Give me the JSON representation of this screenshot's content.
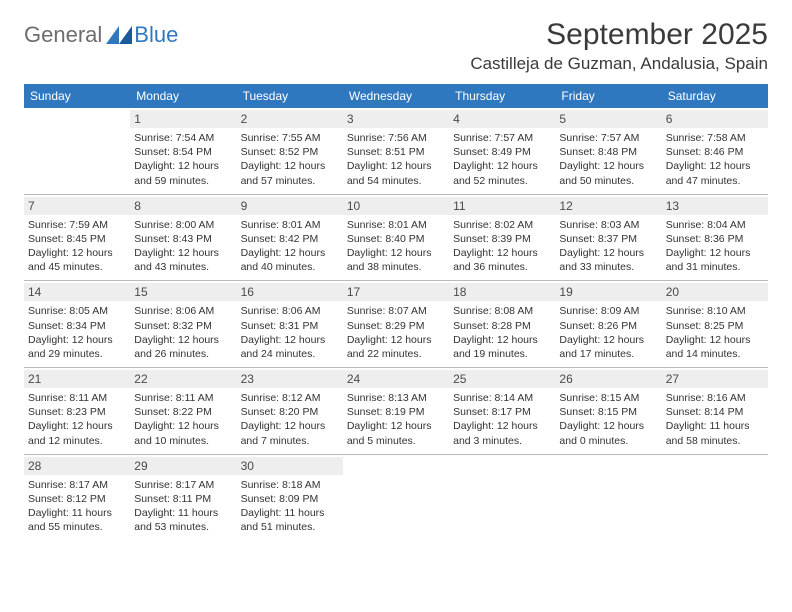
{
  "logo": {
    "text1": "General",
    "text2": "Blue"
  },
  "title": "September 2025",
  "location": "Castilleja de Guzman, Andalusia, Spain",
  "weekdays": [
    "Sunday",
    "Monday",
    "Tuesday",
    "Wednesday",
    "Thursday",
    "Friday",
    "Saturday"
  ],
  "colors": {
    "header_bg": "#2f78bf",
    "header_text": "#ffffff",
    "daynum_bg": "#eeeeee",
    "rule": "#b9b9b9",
    "text": "#333333"
  },
  "weeks": [
    [
      null,
      {
        "n": "1",
        "sr": "Sunrise: 7:54 AM",
        "ss": "Sunset: 8:54 PM",
        "d1": "Daylight: 12 hours",
        "d2": "and 59 minutes."
      },
      {
        "n": "2",
        "sr": "Sunrise: 7:55 AM",
        "ss": "Sunset: 8:52 PM",
        "d1": "Daylight: 12 hours",
        "d2": "and 57 minutes."
      },
      {
        "n": "3",
        "sr": "Sunrise: 7:56 AM",
        "ss": "Sunset: 8:51 PM",
        "d1": "Daylight: 12 hours",
        "d2": "and 54 minutes."
      },
      {
        "n": "4",
        "sr": "Sunrise: 7:57 AM",
        "ss": "Sunset: 8:49 PM",
        "d1": "Daylight: 12 hours",
        "d2": "and 52 minutes."
      },
      {
        "n": "5",
        "sr": "Sunrise: 7:57 AM",
        "ss": "Sunset: 8:48 PM",
        "d1": "Daylight: 12 hours",
        "d2": "and 50 minutes."
      },
      {
        "n": "6",
        "sr": "Sunrise: 7:58 AM",
        "ss": "Sunset: 8:46 PM",
        "d1": "Daylight: 12 hours",
        "d2": "and 47 minutes."
      }
    ],
    [
      {
        "n": "7",
        "sr": "Sunrise: 7:59 AM",
        "ss": "Sunset: 8:45 PM",
        "d1": "Daylight: 12 hours",
        "d2": "and 45 minutes."
      },
      {
        "n": "8",
        "sr": "Sunrise: 8:00 AM",
        "ss": "Sunset: 8:43 PM",
        "d1": "Daylight: 12 hours",
        "d2": "and 43 minutes."
      },
      {
        "n": "9",
        "sr": "Sunrise: 8:01 AM",
        "ss": "Sunset: 8:42 PM",
        "d1": "Daylight: 12 hours",
        "d2": "and 40 minutes."
      },
      {
        "n": "10",
        "sr": "Sunrise: 8:01 AM",
        "ss": "Sunset: 8:40 PM",
        "d1": "Daylight: 12 hours",
        "d2": "and 38 minutes."
      },
      {
        "n": "11",
        "sr": "Sunrise: 8:02 AM",
        "ss": "Sunset: 8:39 PM",
        "d1": "Daylight: 12 hours",
        "d2": "and 36 minutes."
      },
      {
        "n": "12",
        "sr": "Sunrise: 8:03 AM",
        "ss": "Sunset: 8:37 PM",
        "d1": "Daylight: 12 hours",
        "d2": "and 33 minutes."
      },
      {
        "n": "13",
        "sr": "Sunrise: 8:04 AM",
        "ss": "Sunset: 8:36 PM",
        "d1": "Daylight: 12 hours",
        "d2": "and 31 minutes."
      }
    ],
    [
      {
        "n": "14",
        "sr": "Sunrise: 8:05 AM",
        "ss": "Sunset: 8:34 PM",
        "d1": "Daylight: 12 hours",
        "d2": "and 29 minutes."
      },
      {
        "n": "15",
        "sr": "Sunrise: 8:06 AM",
        "ss": "Sunset: 8:32 PM",
        "d1": "Daylight: 12 hours",
        "d2": "and 26 minutes."
      },
      {
        "n": "16",
        "sr": "Sunrise: 8:06 AM",
        "ss": "Sunset: 8:31 PM",
        "d1": "Daylight: 12 hours",
        "d2": "and 24 minutes."
      },
      {
        "n": "17",
        "sr": "Sunrise: 8:07 AM",
        "ss": "Sunset: 8:29 PM",
        "d1": "Daylight: 12 hours",
        "d2": "and 22 minutes."
      },
      {
        "n": "18",
        "sr": "Sunrise: 8:08 AM",
        "ss": "Sunset: 8:28 PM",
        "d1": "Daylight: 12 hours",
        "d2": "and 19 minutes."
      },
      {
        "n": "19",
        "sr": "Sunrise: 8:09 AM",
        "ss": "Sunset: 8:26 PM",
        "d1": "Daylight: 12 hours",
        "d2": "and 17 minutes."
      },
      {
        "n": "20",
        "sr": "Sunrise: 8:10 AM",
        "ss": "Sunset: 8:25 PM",
        "d1": "Daylight: 12 hours",
        "d2": "and 14 minutes."
      }
    ],
    [
      {
        "n": "21",
        "sr": "Sunrise: 8:11 AM",
        "ss": "Sunset: 8:23 PM",
        "d1": "Daylight: 12 hours",
        "d2": "and 12 minutes."
      },
      {
        "n": "22",
        "sr": "Sunrise: 8:11 AM",
        "ss": "Sunset: 8:22 PM",
        "d1": "Daylight: 12 hours",
        "d2": "and 10 minutes."
      },
      {
        "n": "23",
        "sr": "Sunrise: 8:12 AM",
        "ss": "Sunset: 8:20 PM",
        "d1": "Daylight: 12 hours",
        "d2": "and 7 minutes."
      },
      {
        "n": "24",
        "sr": "Sunrise: 8:13 AM",
        "ss": "Sunset: 8:19 PM",
        "d1": "Daylight: 12 hours",
        "d2": "and 5 minutes."
      },
      {
        "n": "25",
        "sr": "Sunrise: 8:14 AM",
        "ss": "Sunset: 8:17 PM",
        "d1": "Daylight: 12 hours",
        "d2": "and 3 minutes."
      },
      {
        "n": "26",
        "sr": "Sunrise: 8:15 AM",
        "ss": "Sunset: 8:15 PM",
        "d1": "Daylight: 12 hours",
        "d2": "and 0 minutes."
      },
      {
        "n": "27",
        "sr": "Sunrise: 8:16 AM",
        "ss": "Sunset: 8:14 PM",
        "d1": "Daylight: 11 hours",
        "d2": "and 58 minutes."
      }
    ],
    [
      {
        "n": "28",
        "sr": "Sunrise: 8:17 AM",
        "ss": "Sunset: 8:12 PM",
        "d1": "Daylight: 11 hours",
        "d2": "and 55 minutes."
      },
      {
        "n": "29",
        "sr": "Sunrise: 8:17 AM",
        "ss": "Sunset: 8:11 PM",
        "d1": "Daylight: 11 hours",
        "d2": "and 53 minutes."
      },
      {
        "n": "30",
        "sr": "Sunrise: 8:18 AM",
        "ss": "Sunset: 8:09 PM",
        "d1": "Daylight: 11 hours",
        "d2": "and 51 minutes."
      },
      null,
      null,
      null,
      null
    ]
  ]
}
